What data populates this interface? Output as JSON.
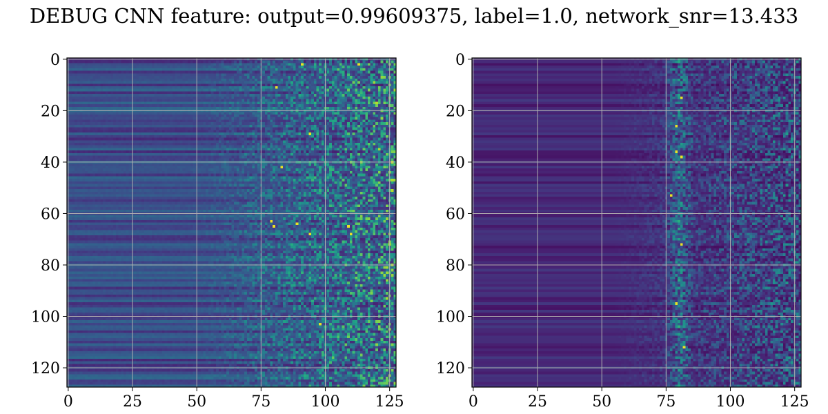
{
  "figure": {
    "title": "DEBUG CNN feature: output=0.99609375, label=1.0, network_snr=13.433"
  },
  "chart_data": [
    {
      "type": "heatmap",
      "name": "left-panel",
      "colormap": "viridis",
      "grid": true,
      "xlim": [
        0,
        127
      ],
      "ylim": [
        127,
        0
      ],
      "x_ticks": [
        0,
        25,
        50,
        75,
        100,
        125
      ],
      "y_ticks": [
        0,
        20,
        40,
        60,
        80,
        100,
        120
      ],
      "dimensions": [
        128,
        128
      ],
      "texture": "horizontal banding for columns 0-55, increasing noisy speckle from column ~55 to 127; bright yellow spots near rows 63-68 around columns 78-115",
      "hotspots": [
        {
          "row": 2,
          "col": 91
        },
        {
          "row": 2,
          "col": 113
        },
        {
          "row": 11,
          "col": 81
        },
        {
          "row": 29,
          "col": 94
        },
        {
          "row": 42,
          "col": 83
        },
        {
          "row": 63,
          "col": 79
        },
        {
          "row": 65,
          "col": 80
        },
        {
          "row": 64,
          "col": 89
        },
        {
          "row": 65,
          "col": 109
        },
        {
          "row": 68,
          "col": 94
        },
        {
          "row": 68,
          "col": 110
        },
        {
          "row": 103,
          "col": 98
        }
      ]
    },
    {
      "type": "heatmap",
      "name": "right-panel",
      "colormap": "viridis",
      "grid": true,
      "xlim": [
        0,
        127
      ],
      "ylim": [
        127,
        0
      ],
      "x_ticks": [
        0,
        25,
        50,
        75,
        100,
        125
      ],
      "y_ticks": [
        0,
        20,
        40,
        60,
        80,
        100,
        120
      ],
      "dimensions": [
        128,
        128
      ],
      "texture": "dark left half, noisy speckle from column ~60; vertical bright streak near column 80 across all rows",
      "hotspots": [
        {
          "row": 15,
          "col": 81
        },
        {
          "row": 26,
          "col": 79
        },
        {
          "row": 36,
          "col": 79
        },
        {
          "row": 38,
          "col": 81
        },
        {
          "row": 53,
          "col": 77
        },
        {
          "row": 72,
          "col": 81
        },
        {
          "row": 95,
          "col": 79
        },
        {
          "row": 112,
          "col": 82
        }
      ]
    }
  ]
}
